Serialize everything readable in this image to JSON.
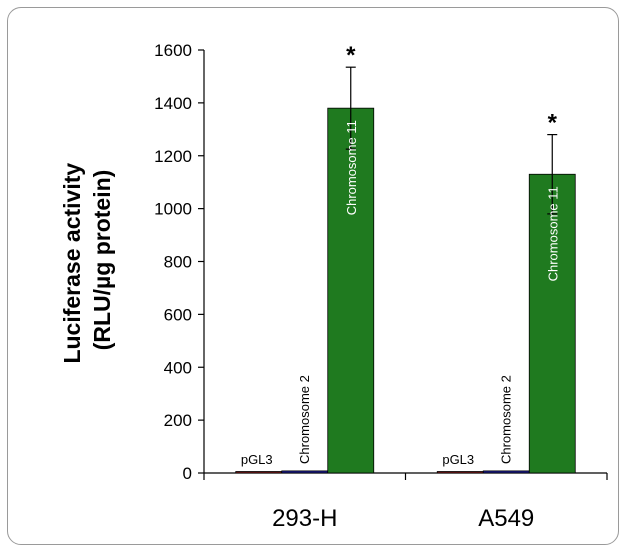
{
  "chart_data": {
    "type": "bar",
    "ylabel_line1": "Luciferase activity",
    "ylabel_line2": "(RLU/µg protein)",
    "ylim": [
      0,
      1600
    ],
    "yticks": [
      0,
      200,
      400,
      600,
      800,
      1000,
      1200,
      1400,
      1600
    ],
    "categories": [
      "293-H",
      "A549"
    ],
    "series": [
      {
        "name": "pGL3",
        "values": [
          5,
          5
        ],
        "errors": [
          0,
          0
        ],
        "color": "#8b1a1a",
        "label_position": "above"
      },
      {
        "name": "Chromosome 2",
        "values": [
          8,
          8
        ],
        "errors": [
          0,
          0
        ],
        "color": "#1a1a8b",
        "label_position": "above-vertical"
      },
      {
        "name": "Chromosome 11",
        "values": [
          1380,
          1130
        ],
        "errors": [
          155,
          150
        ],
        "color": "#1f7a1f",
        "label_position": "inside-vertical"
      }
    ],
    "annotations": [
      "*",
      "*"
    ]
  }
}
